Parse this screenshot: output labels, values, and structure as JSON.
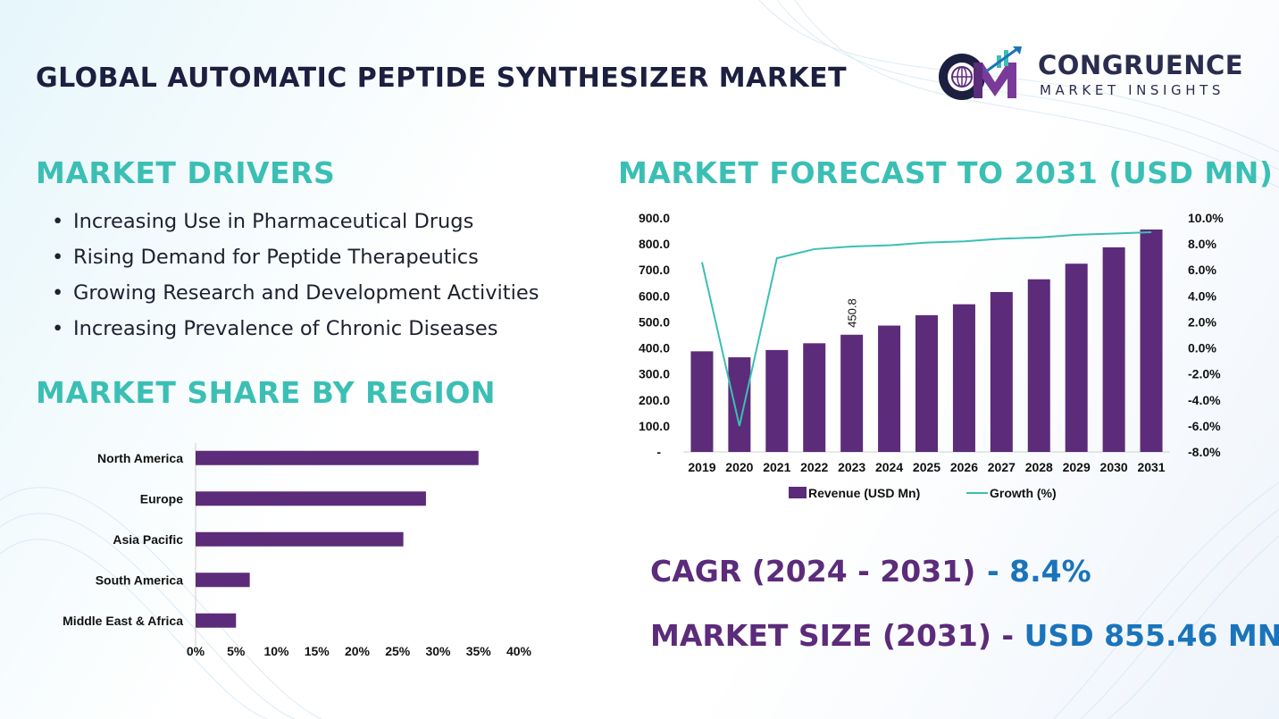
{
  "title": "GLOBAL AUTOMATIC PEPTIDE SYNTHESIZER MARKET",
  "logo": {
    "name": "CONGRUENCE",
    "sub": "MARKET INSIGHTS"
  },
  "drivers": {
    "heading": "MARKET DRIVERS",
    "items": [
      "Increasing Use in Pharmaceutical Drugs",
      "Rising Demand for Peptide Therapeutics",
      "Growing Research and Development Activities",
      "Increasing Prevalence of Chronic Diseases"
    ]
  },
  "region": {
    "heading": "MARKET SHARE BY REGION"
  },
  "forecast": {
    "heading": "MARKET FORECAST TO 2031 (USD MN)"
  },
  "stats": {
    "cagr_label": "CAGR (2024 - 2031)",
    "cagr_value": "- 8.4%",
    "size_label": "MARKET SIZE (2031)",
    "size_sep": "-",
    "size_value": "USD  855.46 MN"
  },
  "colors": {
    "bar": "#5c2b7a",
    "line": "#3bbfb4",
    "heading": "#3bbfb4",
    "title": "#1c1f3f",
    "accent_blue": "#1a74bb"
  },
  "chart_data": [
    {
      "type": "bar",
      "orientation": "horizontal",
      "categories": [
        "North America",
        "Europe",
        "Asia Pacific",
        "South America",
        "Middle East & Africa"
      ],
      "values": [
        35,
        28.5,
        25.7,
        6.7,
        5
      ],
      "xlim": [
        0,
        40
      ],
      "xticks": [
        "0%",
        "5%",
        "10%",
        "15%",
        "20%",
        "25%",
        "30%",
        "35%",
        "40%"
      ],
      "grid": false
    },
    {
      "type": "bar",
      "combo_with": "line",
      "categories": [
        "2019",
        "2020",
        "2021",
        "2022",
        "2023",
        "2024",
        "2025",
        "2026",
        "2027",
        "2028",
        "2029",
        "2030",
        "2031"
      ],
      "series": [
        {
          "name": "Revenue (USD Mn)",
          "type": "bar",
          "axis": "left",
          "values": [
            387,
            364,
            392,
            418,
            450.8,
            486,
            526,
            568,
            615,
            664,
            724,
            787,
            855.46
          ]
        },
        {
          "name": "Growth (%)",
          "type": "line",
          "axis": "right",
          "values": [
            6.6,
            -6.0,
            6.9,
            7.6,
            7.8,
            7.9,
            8.1,
            8.2,
            8.4,
            8.5,
            8.7,
            8.8,
            8.9
          ]
        }
      ],
      "data_labels": [
        {
          "category": "2023",
          "text": "450.8"
        }
      ],
      "ylim_left": [
        0,
        900
      ],
      "yticks_left": [
        "-",
        "100.0",
        "200.0",
        "300.0",
        "400.0",
        "500.0",
        "600.0",
        "700.0",
        "800.0",
        "900.0"
      ],
      "ylim_right": [
        -8,
        10
      ],
      "yticks_right": [
        "-8.0%",
        "-6.0%",
        "-4.0%",
        "-2.0%",
        "0.0%",
        "2.0%",
        "4.0%",
        "6.0%",
        "8.0%",
        "10.0%"
      ],
      "legend": "bottom",
      "grid": false
    }
  ]
}
